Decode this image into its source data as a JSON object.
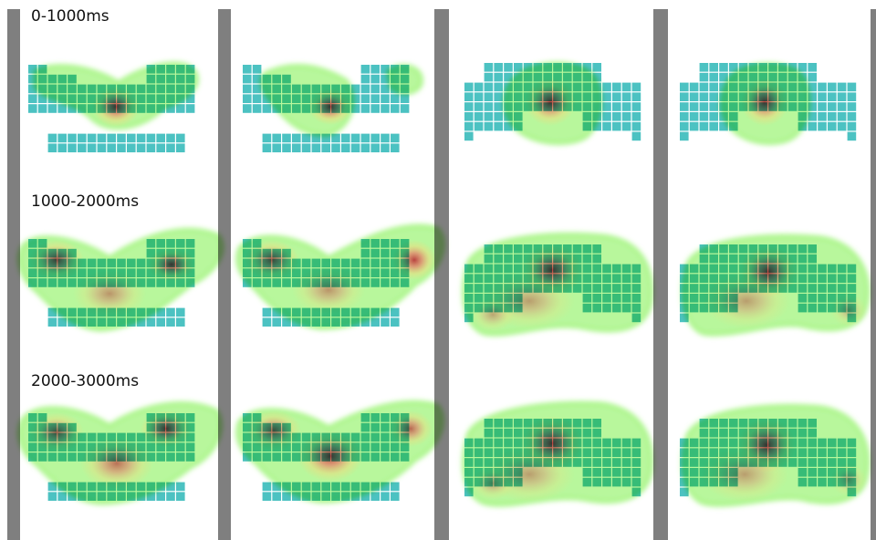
{
  "rows": [
    {
      "label": "0-1000ms"
    },
    {
      "label": "1000-2000ms"
    },
    {
      "label": "2000-3000ms"
    }
  ],
  "colors": {
    "background": "#ffffff",
    "divider": "#7f7f7f",
    "cell": "#4cc2c2",
    "cell_border": "#ffffff",
    "heat_low": "#7df04a",
    "heat_mid": "#f5d77a",
    "heat_high": "#b83a3a"
  }
}
